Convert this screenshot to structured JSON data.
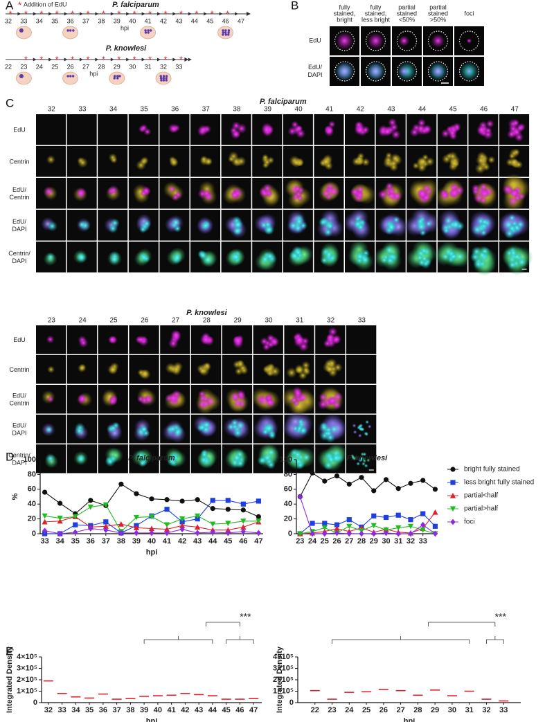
{
  "panel_labels": [
    "A",
    "B",
    "C",
    "D",
    "E"
  ],
  "panel_a": {
    "marker": "*",
    "legend": "Addition of EdU",
    "falciparum": {
      "title": "P. falciparum",
      "hpi": [
        32,
        33,
        34,
        35,
        36,
        37,
        38,
        39,
        40,
        41,
        42,
        43,
        44,
        45,
        46,
        47
      ],
      "x_label": "hpi"
    },
    "knowlesi": {
      "title": "P. knowlesi",
      "hpi": [
        22,
        23,
        24,
        25,
        26,
        27,
        28,
        29,
        30,
        31,
        32,
        33
      ],
      "x_label": "hpi"
    }
  },
  "panel_b": {
    "columns": [
      [
        "fully",
        "stained,",
        "bright"
      ],
      [
        "fully",
        "stained,",
        "less bright"
      ],
      [
        "partial",
        "stained",
        "<50%"
      ],
      [
        "partial",
        "stained",
        ">50%"
      ],
      [
        "foci"
      ]
    ],
    "rows": [
      [
        "EdU"
      ],
      [
        "EdU/",
        "DAPI"
      ]
    ]
  },
  "panel_c": {
    "falciparum": {
      "title": "P. falciparum",
      "hpi": [
        32,
        33,
        34,
        35,
        36,
        37,
        38,
        39,
        40,
        41,
        42,
        43,
        44,
        45,
        46,
        47
      ],
      "rows": [
        [
          "EdU"
        ],
        [
          "Centrin"
        ],
        [
          "EdU/",
          "Centrin"
        ],
        [
          "EdU/",
          "DAPI"
        ],
        [
          "Centrin/",
          "DAPI"
        ]
      ]
    },
    "knowlesi": {
      "title": "P. knowlesi",
      "hpi": [
        23,
        24,
        25,
        26,
        27,
        28,
        29,
        30,
        31,
        32,
        33
      ],
      "rows": [
        [
          "EdU"
        ],
        [
          "Centrin"
        ],
        [
          "EdU/",
          "Centrin"
        ],
        [
          "EdU/",
          "DAPI"
        ],
        [
          "Centrin/",
          "DAPI"
        ]
      ]
    }
  },
  "chart_data": [
    {
      "type": "line",
      "title": "P. falciparum",
      "x_label": "hpi",
      "y_label": "%",
      "x": [
        33,
        34,
        35,
        36,
        37,
        38,
        39,
        40,
        41,
        42,
        43,
        44,
        45,
        46,
        47
      ],
      "xlim": [
        32.7,
        47.3
      ],
      "xticks": [
        33,
        34,
        35,
        36,
        37,
        38,
        39,
        40,
        41,
        42,
        43,
        44,
        45,
        46,
        47
      ],
      "ylim": [
        0,
        100
      ],
      "yticks": [
        0,
        20,
        40,
        60,
        80,
        100
      ],
      "series": [
        {
          "color": "#111111",
          "marker": "circle",
          "values": [
            56,
            41,
            27,
            45,
            38,
            67,
            54,
            47,
            46,
            44,
            46,
            34,
            33,
            32,
            23
          ]
        },
        {
          "color": "#1f3fe0",
          "marker": "square",
          "values": [
            0,
            0,
            12,
            11,
            16,
            1,
            11,
            24,
            33,
            16,
            20,
            45,
            45,
            40,
            44
          ]
        },
        {
          "color": "#e0202a",
          "marker": "triangle-up",
          "values": [
            16,
            17,
            23,
            9,
            10,
            13,
            8,
            7,
            6,
            11,
            9,
            5,
            5,
            9,
            16
          ]
        },
        {
          "color": "#22bb22",
          "marker": "triangle-down",
          "values": [
            24,
            21,
            23,
            36,
            39,
            3,
            22,
            23,
            12,
            20,
            24,
            13,
            14,
            17,
            17
          ]
        },
        {
          "color": "#8a2be2",
          "marker": "diamond",
          "values": [
            4,
            0,
            2,
            7,
            5,
            1,
            1,
            1,
            1,
            6,
            1,
            2,
            1,
            3,
            1
          ]
        }
      ]
    },
    {
      "type": "line",
      "title": "P. knowlesi",
      "legend": "right",
      "x": [
        23,
        24,
        25,
        26,
        27,
        28,
        29,
        30,
        31,
        32,
        33,
        34
      ],
      "xlim": [
        22.7,
        34.2
      ],
      "xticks": [
        23,
        24,
        25,
        26,
        27,
        28,
        29,
        30,
        31,
        32,
        33
      ],
      "ylim": [
        0,
        100
      ],
      "yticks": [
        0,
        20,
        40,
        60,
        80,
        100
      ],
      "series": [
        {
          "name": "bright fully stained",
          "color": "#111111",
          "marker": "circle",
          "values": [
            50,
            82,
            71,
            78,
            67,
            76,
            58,
            73,
            61,
            68,
            72,
            60
          ]
        },
        {
          "name": "less bright fully stained",
          "color": "#1f3fe0",
          "marker": "square",
          "values": [
            0,
            14,
            14,
            12,
            19,
            9,
            24,
            22,
            25,
            19,
            27,
            10
          ]
        },
        {
          "name": "partial<half",
          "color": "#e0202a",
          "marker": "triangle-up",
          "values": [
            0,
            1,
            3,
            7,
            3,
            8,
            2,
            6,
            2,
            1,
            7,
            29
          ]
        },
        {
          "name": "partial>half",
          "color": "#22bb22",
          "marker": "triangle-down",
          "values": [
            0,
            3,
            8,
            1,
            10,
            4,
            11,
            5,
            8,
            10,
            5,
            0
          ]
        },
        {
          "name": "foci",
          "color": "#8a2be2",
          "marker": "diamond",
          "values": [
            50,
            0,
            0,
            1,
            0,
            0,
            0,
            1,
            0,
            0,
            12,
            0
          ]
        }
      ]
    },
    {
      "type": "dot",
      "x_label": "hpi",
      "y_label": "Integrated Density",
      "annotation": "***",
      "median_color": "#e0202a",
      "x": [
        32,
        33,
        34,
        35,
        36,
        37,
        38,
        39,
        40,
        41,
        42,
        43,
        44,
        45,
        46,
        47
      ],
      "xlim": [
        31.5,
        47.6
      ],
      "xticks": [
        32,
        33,
        34,
        35,
        36,
        37,
        38,
        39,
        40,
        41,
        42,
        43,
        44,
        45,
        46,
        47
      ],
      "values": [
        190000,
        80000,
        50000,
        40000,
        75000,
        30000,
        35000,
        55000,
        60000,
        65000,
        80000,
        70000,
        60000,
        30000,
        30000,
        35000
      ],
      "ylim": [
        0,
        400000
      ],
      "yticks": [
        0,
        {
          "value": 100000,
          "label": "1×10⁵"
        },
        {
          "value": 200000,
          "label": "2×10⁵"
        },
        {
          "value": 300000,
          "label": "3×10⁵"
        },
        {
          "value": 400000,
          "label": "4×10⁵"
        }
      ]
    },
    {
      "type": "dot",
      "x_label": "hpi",
      "y_label": "Integrated Density",
      "annotation": "***",
      "median_color": "#e0202a",
      "x": [
        22,
        23,
        24,
        25,
        26,
        27,
        28,
        29,
        30,
        31,
        32,
        33
      ],
      "xlim": [
        21,
        34
      ],
      "xticks": [
        22,
        23,
        24,
        25,
        26,
        27,
        28,
        29,
        30,
        31,
        32,
        33
      ],
      "values": [
        105000,
        30000,
        90000,
        95000,
        115000,
        105000,
        65000,
        110000,
        60000,
        100000,
        30000,
        15000
      ],
      "ylim": [
        0,
        400000
      ],
      "yticks": [
        0,
        {
          "value": 100000,
          "label": "1×10⁵"
        },
        {
          "value": 200000,
          "label": "2×10⁵"
        },
        {
          "value": 300000,
          "label": "3×10⁵"
        },
        {
          "value": 400000,
          "label": "4×10⁵"
        }
      ]
    }
  ]
}
